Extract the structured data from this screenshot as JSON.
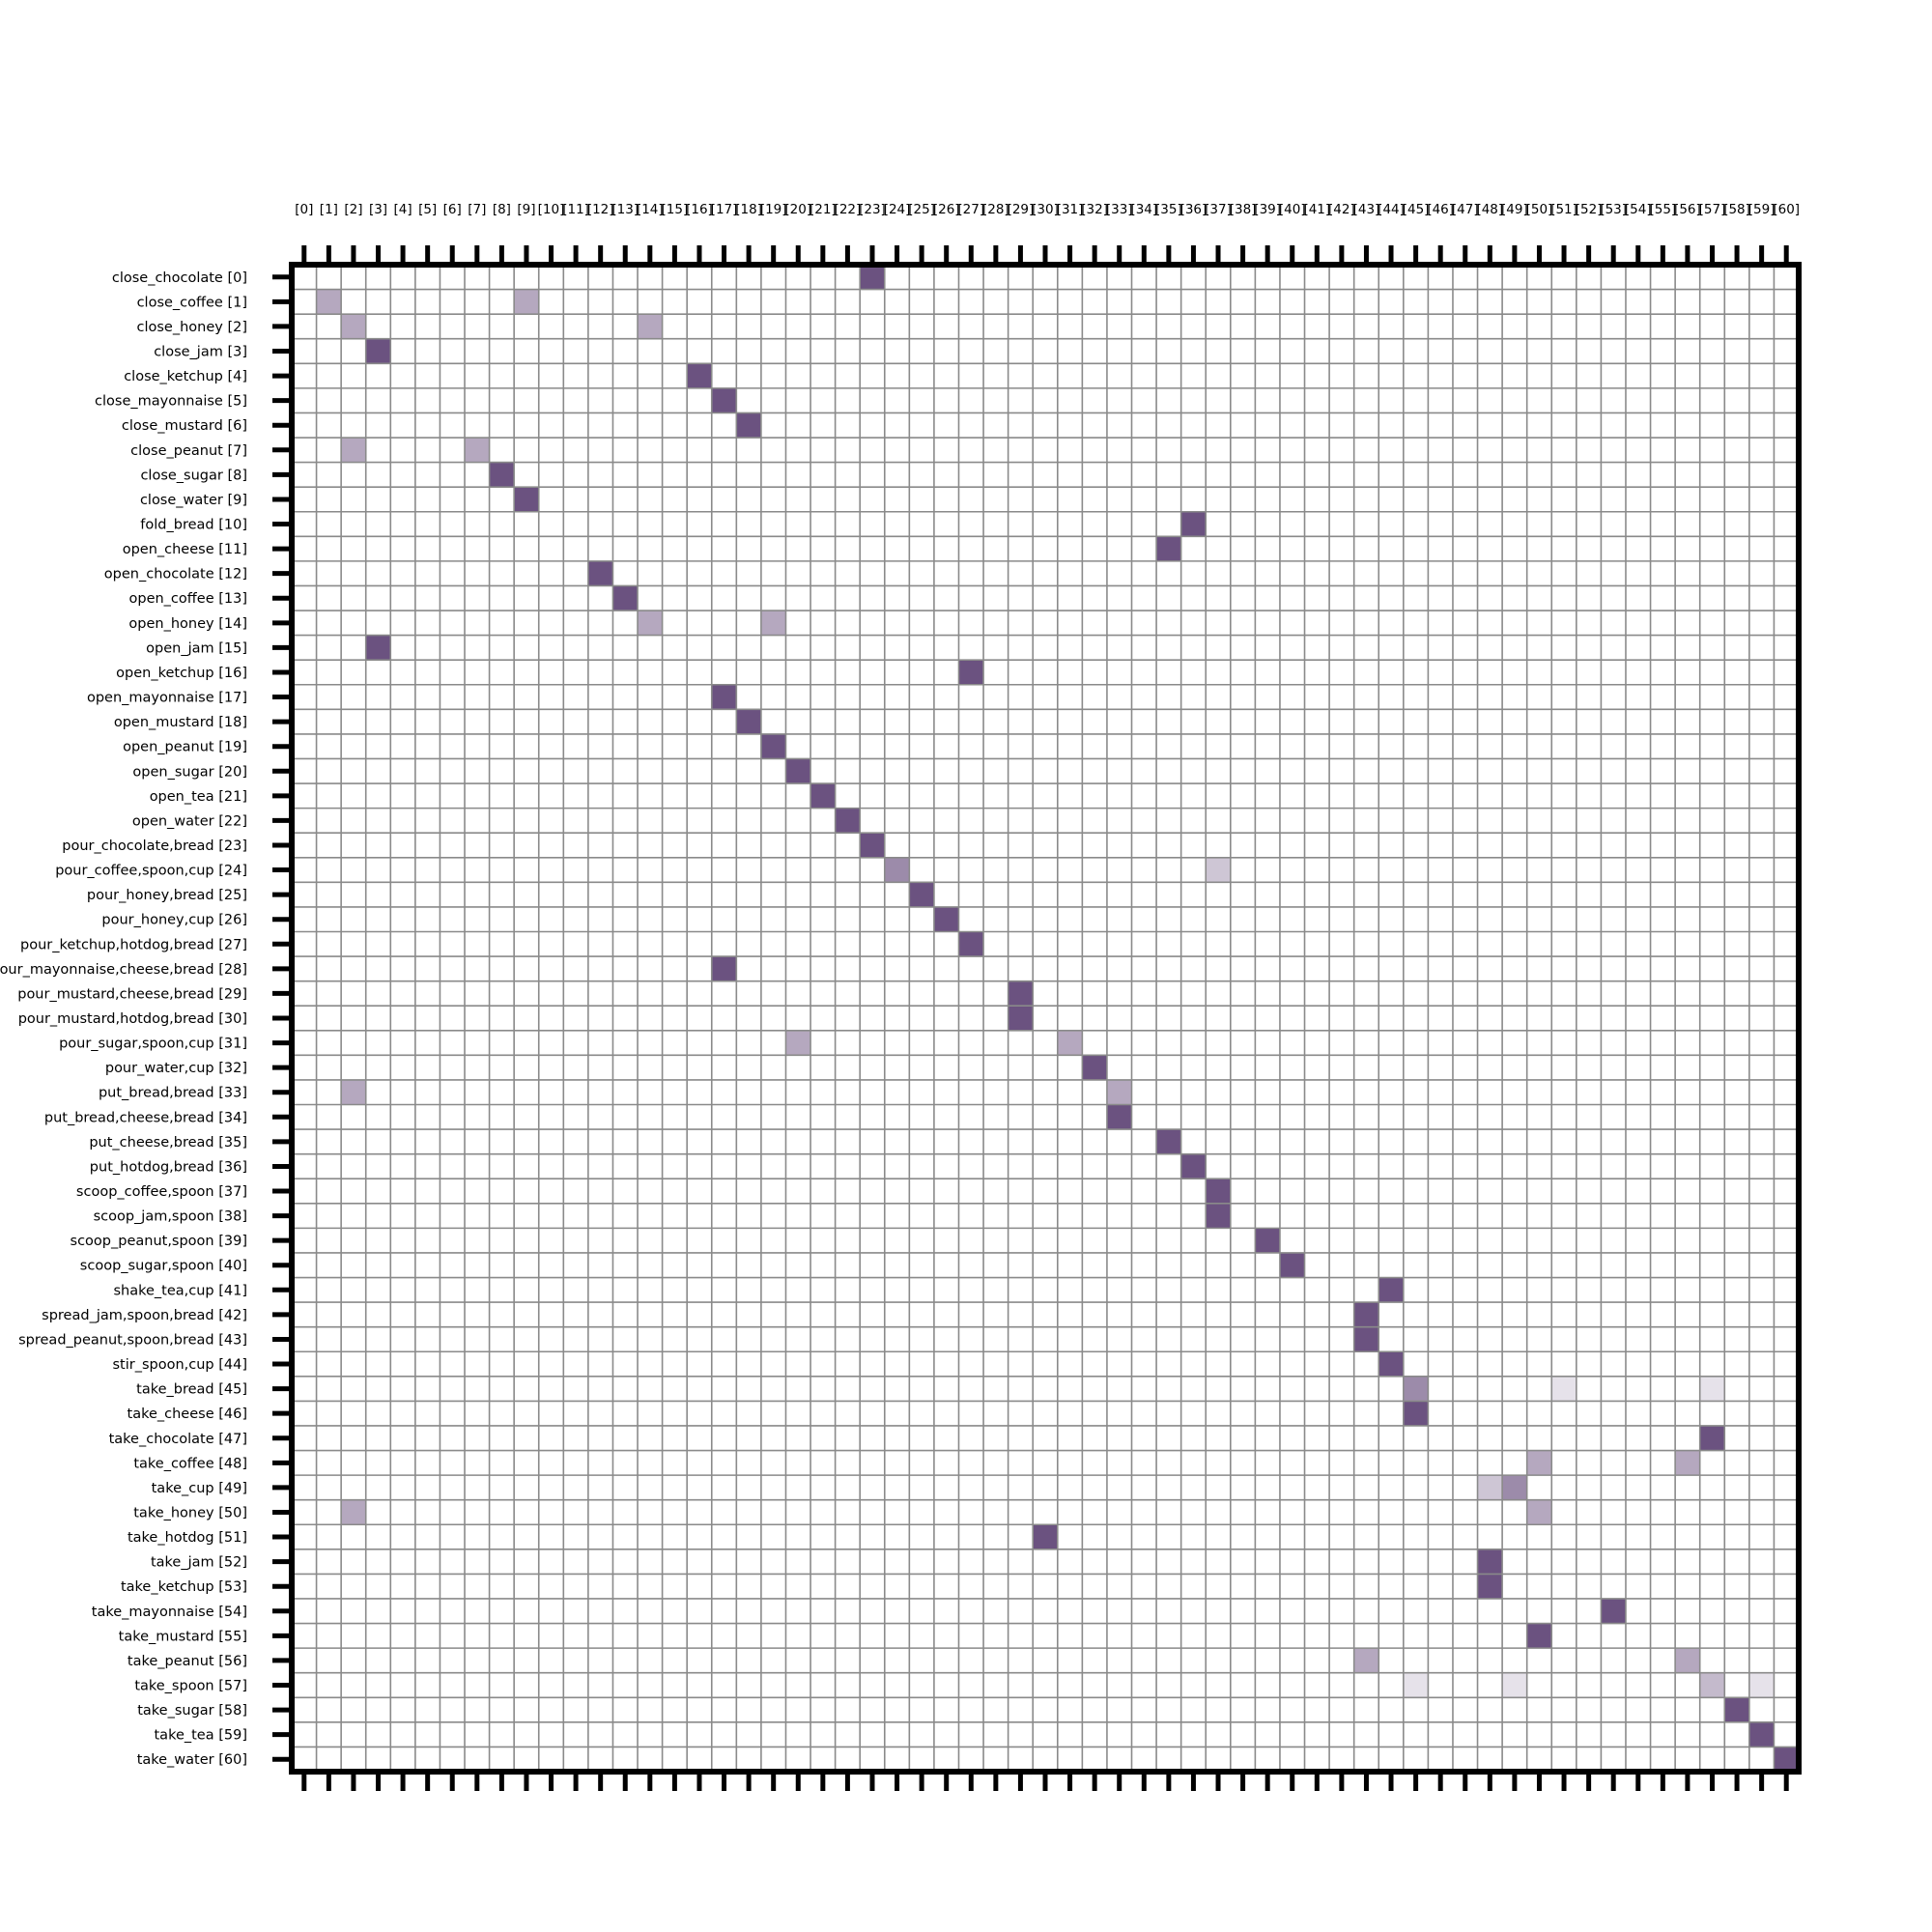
{
  "chart_data": {
    "type": "heatmap",
    "title": "",
    "xlabel": "",
    "ylabel": "",
    "x_tick_labels": [
      "[0]",
      "[1]",
      "[2]",
      "[3]",
      "[4]",
      "[5]",
      "[6]",
      "[7]",
      "[8]",
      "[9]",
      "[10]",
      "[11]",
      "[12]",
      "[13]",
      "[14]",
      "[15]",
      "[16]",
      "[17]",
      "[18]",
      "[19]",
      "[20]",
      "[21]",
      "[22]",
      "[23]",
      "[24]",
      "[25]",
      "[26]",
      "[27]",
      "[28]",
      "[29]",
      "[30]",
      "[31]",
      "[32]",
      "[33]",
      "[34]",
      "[35]",
      "[36]",
      "[37]",
      "[38]",
      "[39]",
      "[40]",
      "[41]",
      "[42]",
      "[43]",
      "[44]",
      "[45]",
      "[46]",
      "[47]",
      "[48]",
      "[49]",
      "[50]",
      "[51]",
      "[52]",
      "[53]",
      "[54]",
      "[55]",
      "[56]",
      "[57]",
      "[58]",
      "[59]",
      "[60]"
    ],
    "y_tick_labels": [
      "close_chocolate [0]",
      "close_coffee [1]",
      "close_honey [2]",
      "close_jam [3]",
      "close_ketchup [4]",
      "close_mayonnaise [5]",
      "close_mustard [6]",
      "close_peanut [7]",
      "close_sugar [8]",
      "close_water [9]",
      "fold_bread [10]",
      "open_cheese [11]",
      "open_chocolate [12]",
      "open_coffee [13]",
      "open_honey [14]",
      "open_jam [15]",
      "open_ketchup [16]",
      "open_mayonnaise [17]",
      "open_mustard [18]",
      "open_peanut [19]",
      "open_sugar [20]",
      "open_tea [21]",
      "open_water [22]",
      "pour_chocolate,bread [23]",
      "pour_coffee,spoon,cup [24]",
      "pour_honey,bread [25]",
      "pour_honey,cup [26]",
      "pour_ketchup,hotdog,bread [27]",
      "pour_mayonnaise,cheese,bread [28]",
      "pour_mustard,cheese,bread [29]",
      "pour_mustard,hotdog,bread [30]",
      "pour_sugar,spoon,cup [31]",
      "pour_water,cup [32]",
      "put_bread,bread [33]",
      "put_bread,cheese,bread [34]",
      "put_cheese,bread [35]",
      "put_hotdog,bread [36]",
      "scoop_coffee,spoon [37]",
      "scoop_jam,spoon [38]",
      "scoop_peanut,spoon [39]",
      "scoop_sugar,spoon [40]",
      "shake_tea,cup [41]",
      "spread_jam,spoon,bread [42]",
      "spread_peanut,spoon,bread [43]",
      "stir_spoon,cup [44]",
      "take_bread [45]",
      "take_cheese [46]",
      "take_chocolate [47]",
      "take_coffee [48]",
      "take_cup [49]",
      "take_honey [50]",
      "take_hotdog [51]",
      "take_jam [52]",
      "take_ketchup [53]",
      "take_mayonnaise [54]",
      "take_mustard [55]",
      "take_peanut [56]",
      "take_spoon [57]",
      "take_sugar [58]",
      "take_tea [59]",
      "take_water [60]"
    ],
    "value_range": [
      0,
      1
    ],
    "grid": true,
    "colors": {
      "cell": "#6b5280",
      "grid": "#8a8a8a",
      "frame": "#000000",
      "background": "#ffffff"
    },
    "cells": [
      {
        "row": 0,
        "col": 23,
        "value": 1.0
      },
      {
        "row": 1,
        "col": 1,
        "value": 0.5
      },
      {
        "row": 1,
        "col": 9,
        "value": 0.5
      },
      {
        "row": 2,
        "col": 2,
        "value": 0.5
      },
      {
        "row": 2,
        "col": 14,
        "value": 0.5
      },
      {
        "row": 3,
        "col": 3,
        "value": 1.0
      },
      {
        "row": 4,
        "col": 16,
        "value": 1.0
      },
      {
        "row": 5,
        "col": 17,
        "value": 1.0
      },
      {
        "row": 6,
        "col": 18,
        "value": 1.0
      },
      {
        "row": 7,
        "col": 2,
        "value": 0.5
      },
      {
        "row": 7,
        "col": 7,
        "value": 0.5
      },
      {
        "row": 8,
        "col": 8,
        "value": 1.0
      },
      {
        "row": 9,
        "col": 9,
        "value": 1.0
      },
      {
        "row": 10,
        "col": 36,
        "value": 1.0
      },
      {
        "row": 11,
        "col": 35,
        "value": 1.0
      },
      {
        "row": 12,
        "col": 12,
        "value": 1.0
      },
      {
        "row": 13,
        "col": 13,
        "value": 1.0
      },
      {
        "row": 14,
        "col": 14,
        "value": 0.5
      },
      {
        "row": 14,
        "col": 19,
        "value": 0.5
      },
      {
        "row": 15,
        "col": 3,
        "value": 1.0
      },
      {
        "row": 16,
        "col": 27,
        "value": 1.0
      },
      {
        "row": 17,
        "col": 17,
        "value": 1.0
      },
      {
        "row": 18,
        "col": 18,
        "value": 1.0
      },
      {
        "row": 19,
        "col": 19,
        "value": 1.0
      },
      {
        "row": 20,
        "col": 20,
        "value": 1.0
      },
      {
        "row": 21,
        "col": 21,
        "value": 1.0
      },
      {
        "row": 22,
        "col": 22,
        "value": 1.0
      },
      {
        "row": 23,
        "col": 23,
        "value": 1.0
      },
      {
        "row": 24,
        "col": 24,
        "value": 0.67
      },
      {
        "row": 24,
        "col": 37,
        "value": 0.33
      },
      {
        "row": 25,
        "col": 25,
        "value": 1.0
      },
      {
        "row": 26,
        "col": 26,
        "value": 1.0
      },
      {
        "row": 27,
        "col": 27,
        "value": 1.0
      },
      {
        "row": 28,
        "col": 17,
        "value": 1.0
      },
      {
        "row": 29,
        "col": 29,
        "value": 1.0
      },
      {
        "row": 30,
        "col": 29,
        "value": 1.0
      },
      {
        "row": 31,
        "col": 20,
        "value": 0.5
      },
      {
        "row": 31,
        "col": 31,
        "value": 0.5
      },
      {
        "row": 32,
        "col": 32,
        "value": 1.0
      },
      {
        "row": 33,
        "col": 2,
        "value": 0.5
      },
      {
        "row": 33,
        "col": 33,
        "value": 0.5
      },
      {
        "row": 34,
        "col": 33,
        "value": 1.0
      },
      {
        "row": 35,
        "col": 35,
        "value": 1.0
      },
      {
        "row": 36,
        "col": 36,
        "value": 1.0
      },
      {
        "row": 37,
        "col": 37,
        "value": 1.0
      },
      {
        "row": 38,
        "col": 37,
        "value": 1.0
      },
      {
        "row": 39,
        "col": 39,
        "value": 1.0
      },
      {
        "row": 40,
        "col": 40,
        "value": 1.0
      },
      {
        "row": 41,
        "col": 44,
        "value": 1.0
      },
      {
        "row": 42,
        "col": 43,
        "value": 1.0
      },
      {
        "row": 43,
        "col": 43,
        "value": 1.0
      },
      {
        "row": 44,
        "col": 44,
        "value": 1.0
      },
      {
        "row": 45,
        "col": 45,
        "value": 0.67
      },
      {
        "row": 45,
        "col": 51,
        "value": 0.17
      },
      {
        "row": 45,
        "col": 57,
        "value": 0.17
      },
      {
        "row": 46,
        "col": 45,
        "value": 1.0
      },
      {
        "row": 47,
        "col": 57,
        "value": 1.0
      },
      {
        "row": 48,
        "col": 50,
        "value": 0.5
      },
      {
        "row": 48,
        "col": 56,
        "value": 0.5
      },
      {
        "row": 49,
        "col": 48,
        "value": 0.33
      },
      {
        "row": 49,
        "col": 49,
        "value": 0.67
      },
      {
        "row": 50,
        "col": 2,
        "value": 0.5
      },
      {
        "row": 50,
        "col": 50,
        "value": 0.5
      },
      {
        "row": 51,
        "col": 30,
        "value": 1.0
      },
      {
        "row": 52,
        "col": 48,
        "value": 1.0
      },
      {
        "row": 53,
        "col": 48,
        "value": 1.0
      },
      {
        "row": 54,
        "col": 53,
        "value": 1.0
      },
      {
        "row": 55,
        "col": 50,
        "value": 1.0
      },
      {
        "row": 56,
        "col": 43,
        "value": 0.5
      },
      {
        "row": 56,
        "col": 56,
        "value": 0.5
      },
      {
        "row": 57,
        "col": 45,
        "value": 0.17
      },
      {
        "row": 57,
        "col": 49,
        "value": 0.17
      },
      {
        "row": 57,
        "col": 57,
        "value": 0.4
      },
      {
        "row": 57,
        "col": 59,
        "value": 0.17
      },
      {
        "row": 58,
        "col": 58,
        "value": 1.0
      },
      {
        "row": 59,
        "col": 59,
        "value": 1.0
      },
      {
        "row": 60,
        "col": 60,
        "value": 1.0
      }
    ]
  }
}
